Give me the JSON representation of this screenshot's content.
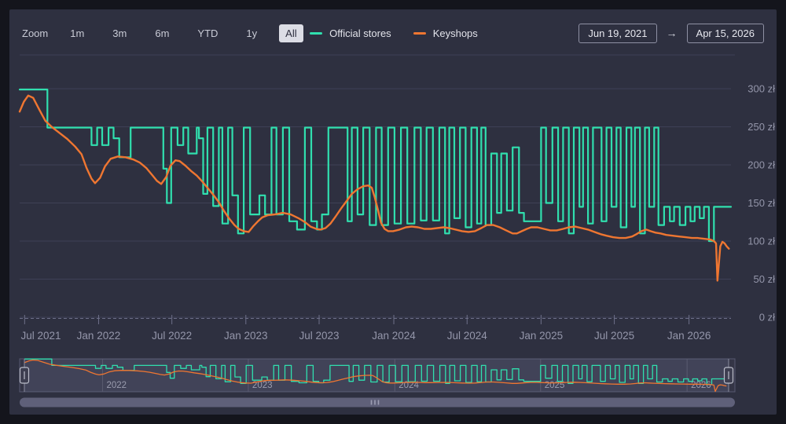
{
  "toolbar": {
    "zoom_label": "Zoom",
    "buttons": [
      {
        "label": "1m",
        "selected": false
      },
      {
        "label": "3m",
        "selected": false
      },
      {
        "label": "6m",
        "selected": false
      },
      {
        "label": "YTD",
        "selected": false
      },
      {
        "label": "1y",
        "selected": false
      },
      {
        "label": "All",
        "selected": true
      }
    ]
  },
  "legend": {
    "items": [
      {
        "label": "Official stores",
        "color": "#30dfae"
      },
      {
        "label": "Keyshops",
        "color": "#ef7631"
      }
    ]
  },
  "range_inputs": {
    "from": "Jun 19, 2021",
    "arrow": "→",
    "to": "Apr 15, 2026"
  },
  "colors": {
    "background": "#2e3040",
    "frame": "#14151c",
    "grid": "#3e4056",
    "axis_line": "#6e7089",
    "axis_text": "#9496aa",
    "nav_bg": "#343546",
    "nav_selected": "rgba(130,135,170,0.18)",
    "nav_outline": "#8a8ca0",
    "nav_tick": "#5a5b70",
    "nav_text": "#9a9cae",
    "scrollbar": "#5f6079",
    "scrollbar_grip": "#9d9eb4",
    "handle_fill": "#3d3e50",
    "handle_stroke": "#bcbeca"
  },
  "chart_data": {
    "type": "line",
    "title": "Price history: Official stores vs Keyshops",
    "xlabel": "",
    "ylabel": "",
    "y_unit": "zł",
    "ylim": [
      0,
      300
    ],
    "grid": true,
    "legend_position": "top",
    "x_range": [
      "Jun 19, 2021",
      "Apr 15, 2026"
    ],
    "y_ticks": [
      {
        "v": 0,
        "label": "0 zł"
      },
      {
        "v": 50,
        "label": "50 zł"
      },
      {
        "v": 100,
        "label": "100 zł"
      },
      {
        "v": 150,
        "label": "150 zł"
      },
      {
        "v": 200,
        "label": "200 zł"
      },
      {
        "v": 250,
        "label": "250 zł"
      },
      {
        "v": 300,
        "label": "300 zł"
      }
    ],
    "x_ticks": [
      {
        "t": 0.007,
        "label": "Jul 2021"
      },
      {
        "t": 0.111,
        "label": "Jan 2022"
      },
      {
        "t": 0.214,
        "label": "Jul 2022"
      },
      {
        "t": 0.318,
        "label": "Jan 2023"
      },
      {
        "t": 0.421,
        "label": "Jul 2023"
      },
      {
        "t": 0.526,
        "label": "Jan 2024"
      },
      {
        "t": 0.629,
        "label": "Jul 2024"
      },
      {
        "t": 0.733,
        "label": "Jan 2025"
      },
      {
        "t": 0.836,
        "label": "Jul 2025"
      },
      {
        "t": 0.941,
        "label": "Jan 2026"
      }
    ],
    "navigator": {
      "year_ticks": [
        {
          "t": 0.111,
          "label": "2022"
        },
        {
          "t": 0.318,
          "label": "2023"
        },
        {
          "t": 0.526,
          "label": "2024"
        },
        {
          "t": 0.733,
          "label": "2025"
        },
        {
          "t": 0.941,
          "label": "2026"
        }
      ]
    },
    "series": [
      {
        "name": "Official stores",
        "color": "#30dfae",
        "step": true,
        "points": [
          [
            0.0,
            299
          ],
          [
            0.039,
            249
          ],
          [
            0.101,
            226
          ],
          [
            0.109,
            249
          ],
          [
            0.116,
            226
          ],
          [
            0.125,
            249
          ],
          [
            0.132,
            235
          ],
          [
            0.14,
            210
          ],
          [
            0.156,
            249
          ],
          [
            0.202,
            195
          ],
          [
            0.207,
            150
          ],
          [
            0.213,
            249
          ],
          [
            0.222,
            226
          ],
          [
            0.23,
            249
          ],
          [
            0.237,
            215
          ],
          [
            0.249,
            249
          ],
          [
            0.252,
            235
          ],
          [
            0.258,
            162
          ],
          [
            0.264,
            249
          ],
          [
            0.272,
            146
          ],
          [
            0.28,
            249
          ],
          [
            0.285,
            123
          ],
          [
            0.293,
            249
          ],
          [
            0.299,
            160
          ],
          [
            0.307,
            110
          ],
          [
            0.315,
            249
          ],
          [
            0.324,
            135
          ],
          [
            0.337,
            160
          ],
          [
            0.345,
            135
          ],
          [
            0.354,
            249
          ],
          [
            0.361,
            135
          ],
          [
            0.37,
            249
          ],
          [
            0.379,
            126
          ],
          [
            0.39,
            115
          ],
          [
            0.401,
            249
          ],
          [
            0.41,
            126
          ],
          [
            0.418,
            115
          ],
          [
            0.425,
            135
          ],
          [
            0.434,
            249
          ],
          [
            0.461,
            126
          ],
          [
            0.467,
            249
          ],
          [
            0.475,
            135
          ],
          [
            0.483,
            249
          ],
          [
            0.492,
            121
          ],
          [
            0.501,
            249
          ],
          [
            0.509,
            121
          ],
          [
            0.518,
            249
          ],
          [
            0.527,
            123
          ],
          [
            0.536,
            249
          ],
          [
            0.545,
            123
          ],
          [
            0.555,
            249
          ],
          [
            0.564,
            127
          ],
          [
            0.572,
            249
          ],
          [
            0.581,
            127
          ],
          [
            0.59,
            249
          ],
          [
            0.598,
            110
          ],
          [
            0.604,
            249
          ],
          [
            0.611,
            130
          ],
          [
            0.619,
            249
          ],
          [
            0.627,
            118
          ],
          [
            0.635,
            249
          ],
          [
            0.643,
            123
          ],
          [
            0.649,
            249
          ],
          [
            0.655,
            121
          ],
          [
            0.663,
            215
          ],
          [
            0.671,
            137
          ],
          [
            0.677,
            215
          ],
          [
            0.685,
            140
          ],
          [
            0.693,
            223
          ],
          [
            0.702,
            137
          ],
          [
            0.709,
            126
          ],
          [
            0.733,
            249
          ],
          [
            0.74,
            150
          ],
          [
            0.749,
            249
          ],
          [
            0.757,
            126
          ],
          [
            0.764,
            249
          ],
          [
            0.772,
            110
          ],
          [
            0.779,
            249
          ],
          [
            0.787,
            145
          ],
          [
            0.792,
            249
          ],
          [
            0.799,
            123
          ],
          [
            0.806,
            249
          ],
          [
            0.818,
            126
          ],
          [
            0.825,
            249
          ],
          [
            0.832,
            145
          ],
          [
            0.839,
            249
          ],
          [
            0.845,
            118
          ],
          [
            0.853,
            249
          ],
          [
            0.86,
            145
          ],
          [
            0.865,
            249
          ],
          [
            0.872,
            110
          ],
          [
            0.879,
            249
          ],
          [
            0.885,
            145
          ],
          [
            0.892,
            249
          ],
          [
            0.898,
            121
          ],
          [
            0.906,
            145
          ],
          [
            0.914,
            126
          ],
          [
            0.92,
            145
          ],
          [
            0.928,
            121
          ],
          [
            0.936,
            145
          ],
          [
            0.943,
            126
          ],
          [
            0.949,
            145
          ],
          [
            0.956,
            130
          ],
          [
            0.962,
            145
          ],
          [
            0.969,
            100
          ],
          [
            0.976,
            145
          ],
          [
            1.0,
            145
          ]
        ]
      },
      {
        "name": "Keyshops",
        "color": "#ef7631",
        "step": false,
        "points": [
          [
            0.0,
            270
          ],
          [
            0.006,
            283
          ],
          [
            0.012,
            291
          ],
          [
            0.019,
            288
          ],
          [
            0.028,
            272
          ],
          [
            0.036,
            258
          ],
          [
            0.045,
            250
          ],
          [
            0.056,
            242
          ],
          [
            0.067,
            234
          ],
          [
            0.078,
            224
          ],
          [
            0.087,
            214
          ],
          [
            0.094,
            196
          ],
          [
            0.101,
            182
          ],
          [
            0.106,
            176
          ],
          [
            0.113,
            183
          ],
          [
            0.12,
            198
          ],
          [
            0.128,
            208
          ],
          [
            0.138,
            211
          ],
          [
            0.149,
            210
          ],
          [
            0.16,
            207
          ],
          [
            0.169,
            203
          ],
          [
            0.178,
            196
          ],
          [
            0.187,
            186
          ],
          [
            0.193,
            179
          ],
          [
            0.199,
            175
          ],
          [
            0.206,
            184
          ],
          [
            0.212,
            199
          ],
          [
            0.219,
            206
          ],
          [
            0.225,
            205
          ],
          [
            0.233,
            199
          ],
          [
            0.241,
            192
          ],
          [
            0.249,
            186
          ],
          [
            0.256,
            179
          ],
          [
            0.264,
            170
          ],
          [
            0.272,
            161
          ],
          [
            0.28,
            151
          ],
          [
            0.287,
            140
          ],
          [
            0.295,
            129
          ],
          [
            0.302,
            121
          ],
          [
            0.308,
            116
          ],
          [
            0.315,
            113
          ],
          [
            0.322,
            112
          ],
          [
            0.328,
            119
          ],
          [
            0.335,
            126
          ],
          [
            0.341,
            131
          ],
          [
            0.349,
            134
          ],
          [
            0.359,
            135
          ],
          [
            0.37,
            137
          ],
          [
            0.381,
            135
          ],
          [
            0.392,
            130
          ],
          [
            0.401,
            125
          ],
          [
            0.409,
            119
          ],
          [
            0.417,
            116
          ],
          [
            0.423,
            115
          ],
          [
            0.43,
            117
          ],
          [
            0.437,
            123
          ],
          [
            0.444,
            132
          ],
          [
            0.452,
            143
          ],
          [
            0.46,
            153
          ],
          [
            0.467,
            162
          ],
          [
            0.475,
            168
          ],
          [
            0.483,
            172
          ],
          [
            0.49,
            173
          ],
          [
            0.495,
            170
          ],
          [
            0.499,
            158
          ],
          [
            0.504,
            140
          ],
          [
            0.508,
            124
          ],
          [
            0.513,
            116
          ],
          [
            0.518,
            113
          ],
          [
            0.525,
            113
          ],
          [
            0.534,
            115
          ],
          [
            0.543,
            118
          ],
          [
            0.551,
            119
          ],
          [
            0.56,
            118
          ],
          [
            0.569,
            116
          ],
          [
            0.578,
            116
          ],
          [
            0.587,
            117
          ],
          [
            0.596,
            118
          ],
          [
            0.604,
            117
          ],
          [
            0.613,
            115
          ],
          [
            0.622,
            113
          ],
          [
            0.631,
            112
          ],
          [
            0.64,
            113
          ],
          [
            0.649,
            117
          ],
          [
            0.657,
            121
          ],
          [
            0.666,
            121
          ],
          [
            0.675,
            118
          ],
          [
            0.684,
            114
          ],
          [
            0.693,
            110
          ],
          [
            0.699,
            110
          ],
          [
            0.706,
            113
          ],
          [
            0.713,
            116
          ],
          [
            0.719,
            118
          ],
          [
            0.728,
            118
          ],
          [
            0.737,
            116
          ],
          [
            0.746,
            114
          ],
          [
            0.755,
            114
          ],
          [
            0.764,
            116
          ],
          [
            0.772,
            118
          ],
          [
            0.781,
            119
          ],
          [
            0.79,
            117
          ],
          [
            0.799,
            115
          ],
          [
            0.808,
            112
          ],
          [
            0.817,
            109
          ],
          [
            0.825,
            107
          ],
          [
            0.834,
            105
          ],
          [
            0.843,
            104
          ],
          [
            0.852,
            104
          ],
          [
            0.861,
            106
          ],
          [
            0.867,
            109
          ],
          [
            0.874,
            113
          ],
          [
            0.881,
            115
          ],
          [
            0.887,
            113
          ],
          [
            0.894,
            111
          ],
          [
            0.901,
            110
          ],
          [
            0.909,
            108
          ],
          [
            0.918,
            107
          ],
          [
            0.927,
            106
          ],
          [
            0.936,
            105
          ],
          [
            0.945,
            104
          ],
          [
            0.953,
            104
          ],
          [
            0.962,
            103
          ],
          [
            0.971,
            102
          ],
          [
            0.976,
            100
          ],
          [
            0.979,
            97
          ],
          [
            0.981,
            48
          ],
          [
            0.985,
            93
          ],
          [
            0.988,
            99
          ],
          [
            0.991,
            97
          ],
          [
            0.994,
            93
          ],
          [
            0.997,
            90
          ]
        ]
      }
    ]
  }
}
